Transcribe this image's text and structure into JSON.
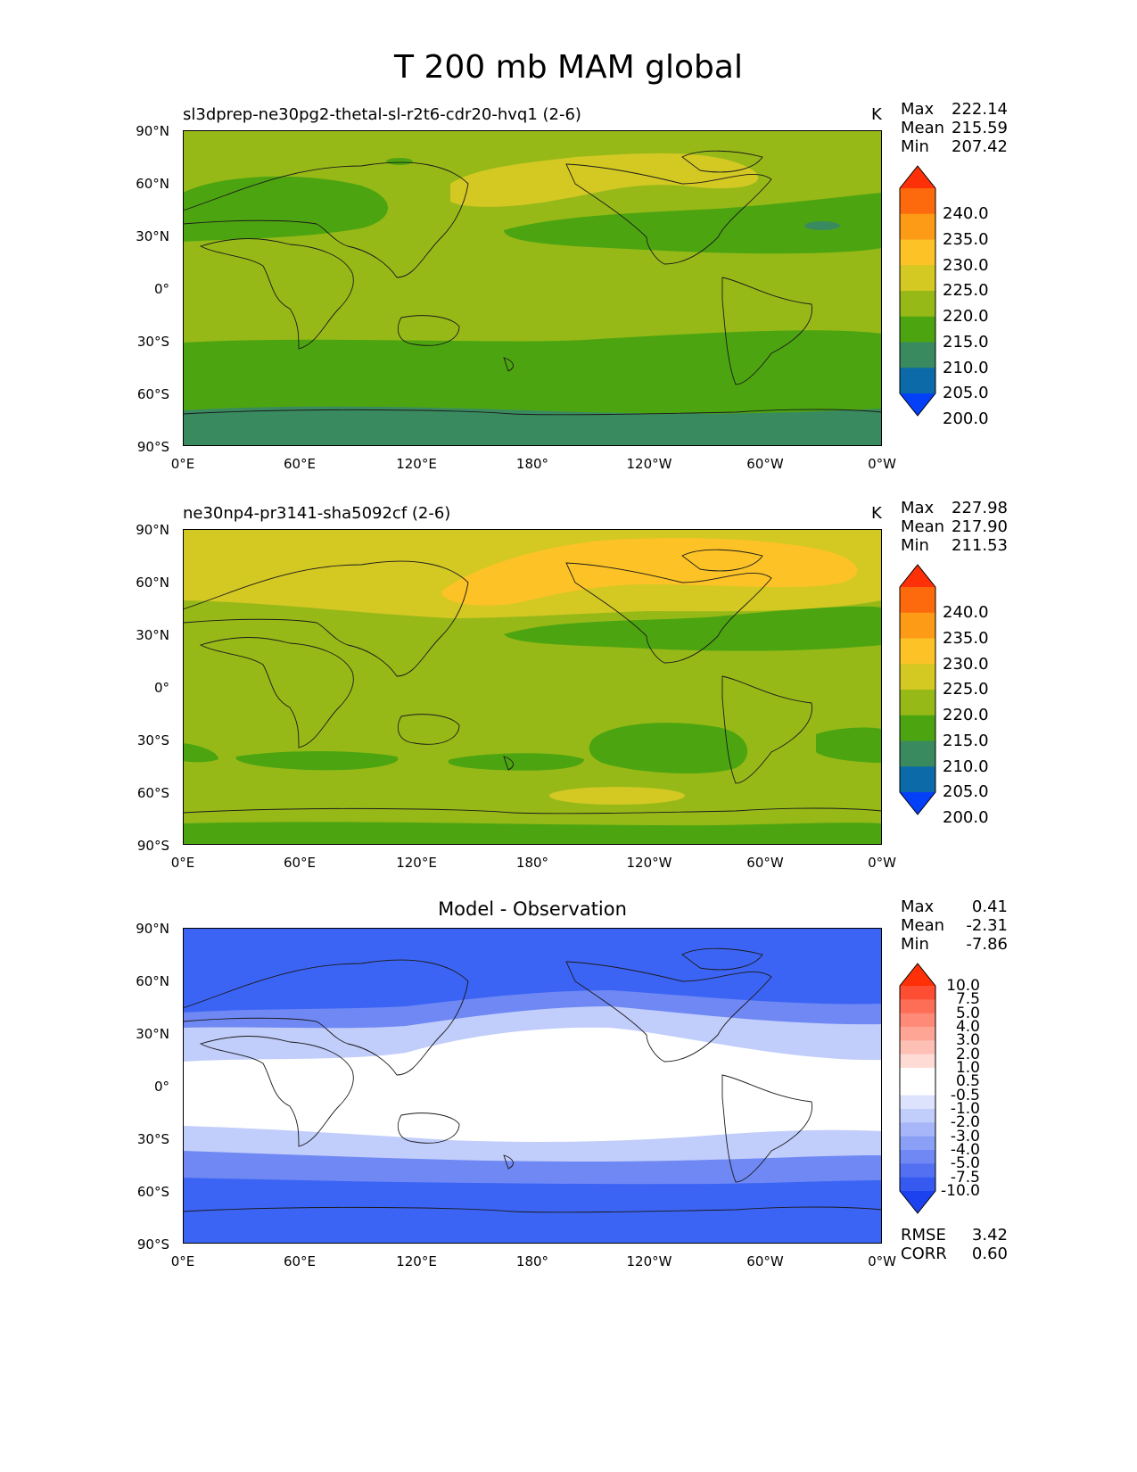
{
  "title": "T 200 mb MAM global",
  "lat_ticks": [
    "90°N",
    "60°N",
    "30°N",
    "0°",
    "30°S",
    "60°S",
    "90°S"
  ],
  "lon_ticks": [
    "0°E",
    "60°E",
    "120°E",
    "180°",
    "120°W",
    "60°W",
    "0°W"
  ],
  "panels": [
    {
      "left_title": "sl3dprep-ne30pg2-thetal-sl-r2t6-cdr20-hvq1 (2-6)",
      "units": "K",
      "center_title": "",
      "stats": {
        "max_label": "Max",
        "max": "222.14",
        "mean_label": "Mean",
        "mean": "215.59",
        "min_label": "Min",
        "min": "207.42"
      },
      "colorbar": {
        "labels": [
          "240.0",
          "235.0",
          "230.0",
          "225.0",
          "220.0",
          "215.0",
          "210.0",
          "205.0",
          "200.0"
        ],
        "colors": [
          "#fd3008",
          "#fd6a0e",
          "#fd9a16",
          "#fcc226",
          "#d4c823",
          "#97b918",
          "#4ca510",
          "#3a8a60",
          "#0b6aa7",
          "#0540f9"
        ]
      }
    },
    {
      "left_title": "ne30np4-pr3141-sha5092cf (2-6)",
      "units": "K",
      "center_title": "",
      "stats": {
        "max_label": "Max",
        "max": "227.98",
        "mean_label": "Mean",
        "mean": "217.90",
        "min_label": "Min",
        "min": "211.53"
      },
      "colorbar": {
        "labels": [
          "240.0",
          "235.0",
          "230.0",
          "225.0",
          "220.0",
          "215.0",
          "210.0",
          "205.0",
          "200.0"
        ],
        "colors": [
          "#fd3008",
          "#fd6a0e",
          "#fd9a16",
          "#fcc226",
          "#d4c823",
          "#97b918",
          "#4ca510",
          "#3a8a60",
          "#0b6aa7",
          "#0540f9"
        ]
      }
    },
    {
      "left_title": "",
      "units": "",
      "center_title": "Model - Observation",
      "stats": {
        "max_label": "Max",
        "max": "0.41",
        "mean_label": "Mean",
        "mean": "-2.31",
        "min_label": "Min",
        "min": "-7.86"
      },
      "colorbar": {
        "labels": [
          "10.0",
          "7.5",
          "5.0",
          "4.0",
          "3.0",
          "2.0",
          "1.0",
          "0.5",
          "-0.5",
          "-1.0",
          "-2.0",
          "-3.0",
          "-4.0",
          "-5.0",
          "-7.5",
          "-10.0"
        ],
        "colors": [
          "#fd3008",
          "#fd4d32",
          "#fe6d55",
          "#fe8a77",
          "#fea596",
          "#fec0b5",
          "#fedcd5",
          "#ffffff",
          "#ffffff",
          "#dde3fc",
          "#c1cdfa",
          "#a6b6f8",
          "#8a9ff6",
          "#6f88f4",
          "#5370f2",
          "#3659f0",
          "#1b42ee"
        ]
      },
      "metrics": {
        "rmse_label": "RMSE",
        "rmse": "3.42",
        "corr_label": "CORR",
        "corr": "0.60"
      }
    }
  ],
  "field_colors": {
    "panel1_base": "#97b918",
    "panel1_warm": "#d4c823",
    "panel1_cool": "#4ca510",
    "panel1_cold": "#3a8a60",
    "panel2_base": "#97b918",
    "panel2_warm": "#d4c823",
    "panel2_hot": "#fcc226",
    "panel2_cool": "#4ca510",
    "diff_neg_strong": "#3c64f4",
    "diff_neg_mid": "#6f88f4",
    "diff_neg_light": "#c1cdfa",
    "diff_zero": "#ffffff"
  }
}
